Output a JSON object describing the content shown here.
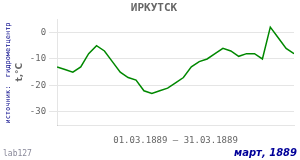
{
  "chart_data": {
    "type": "line",
    "title": "ИРКУТСК",
    "ylabel": "t,°C",
    "xlabel": "01.03.1889 – 31.03.1889",
    "annotations": [
      "март, 1889",
      "lab127",
      "источник:  гидрометцентр"
    ],
    "x": [
      1,
      2,
      3,
      4,
      5,
      6,
      7,
      8,
      9,
      10,
      11,
      12,
      13,
      14,
      15,
      16,
      17,
      18,
      19,
      20,
      21,
      22,
      23,
      24,
      25,
      26,
      27,
      28,
      29,
      30,
      31
    ],
    "values": [
      -13,
      -14,
      -15,
      -13,
      -8,
      -5,
      -7,
      -11,
      -15,
      -17,
      -18,
      -22,
      -23,
      -22,
      -21,
      -19,
      -17,
      -13,
      -11,
      -10,
      -8,
      -6,
      -7,
      -9,
      -8,
      -8,
      -10,
      2,
      -2,
      -6,
      -8
    ],
    "color": "#008800",
    "marker": "none",
    "xlim": [
      1,
      31
    ],
    "xticks": [],
    "ylim": [
      -35,
      5
    ],
    "yticks": [
      0,
      -10,
      -20,
      -30
    ],
    "grid": true,
    "tick_labels": "y"
  }
}
